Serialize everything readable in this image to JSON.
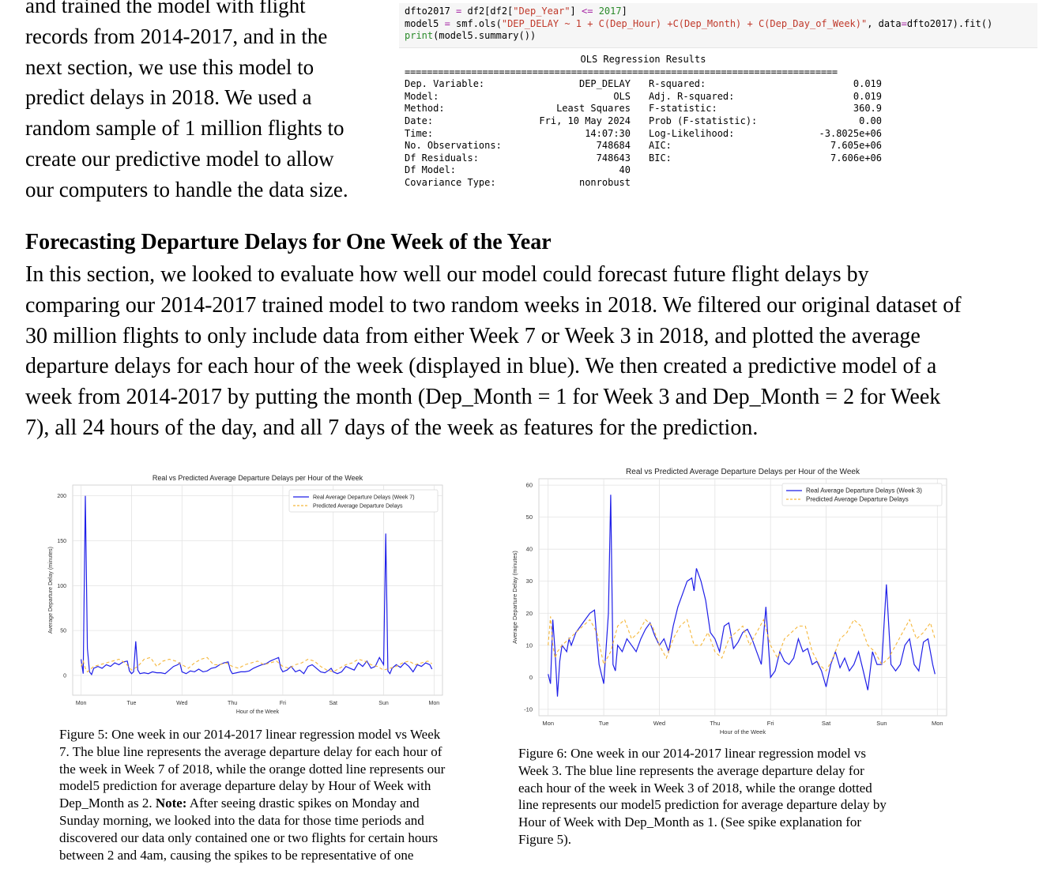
{
  "intro": {
    "lines": [
      "and trained the model with flight",
      "records from 2014-2017, and in the",
      "next section, we use this model to",
      "predict delays in 2018. We used a",
      "random sample of 1 million flights to",
      "create our predictive model to allow",
      "our computers to handle the data size."
    ]
  },
  "code": {
    "line1": "dfto2017 = df2[df2[\"Dep_Year\"] <= 2017]",
    "line2": "model5 = smf.ols(\"DEP_DELAY ~ 1 + C(Dep_Hour) +C(Dep_Month) + C(Dep_Day_of_Week)\", data=dfto2017).fit()",
    "line3": "print(model5.summary())"
  },
  "ols": {
    "title": "OLS Regression Results",
    "rule": "==============================================================================",
    "rows": [
      {
        "l1": "Dep. Variable:",
        "v1": "DEP_DELAY",
        "l2": "R-squared:",
        "v2": "0.019"
      },
      {
        "l1": "Model:",
        "v1": "OLS",
        "l2": "Adj. R-squared:",
        "v2": "0.019"
      },
      {
        "l1": "Method:",
        "v1": "Least Squares",
        "l2": "F-statistic:",
        "v2": "360.9"
      },
      {
        "l1": "Date:",
        "v1": "Fri, 10 May 2024",
        "l2": "Prob (F-statistic):",
        "v2": "0.00"
      },
      {
        "l1": "Time:",
        "v1": "14:07:30",
        "l2": "Log-Likelihood:",
        "v2": "-3.8025e+06"
      },
      {
        "l1": "No. Observations:",
        "v1": "748684",
        "l2": "AIC:",
        "v2": "7.605e+06"
      },
      {
        "l1": "Df Residuals:",
        "v1": "748643",
        "l2": "BIC:",
        "v2": "7.606e+06"
      },
      {
        "l1": "Df Model:",
        "v1": "40",
        "l2": "",
        "v2": ""
      },
      {
        "l1": "Covariance Type:",
        "v1": "nonrobust",
        "l2": "",
        "v2": ""
      }
    ]
  },
  "section": {
    "heading": "Forecasting Departure Delays for One Week of the Year",
    "lines": [
      "In this section, we looked to evaluate how well our model could forecast future flight delays by",
      "comparing our 2014-2017 trained model to two random weeks in 2018. We filtered our original dataset of",
      "30 million flights to only include data from either Week 7 or Week 3 in 2018, and plotted the average",
      "departure delays for each hour of the week (displayed in blue). We then created a predictive model of a",
      "week from 2014-2017 by putting the month (Dep_Month = 1 for Week 3 and Dep_Month = 2 for Week",
      "7), all 24 hours of the day, and all 7 days of the week as features for the prediction."
    ]
  },
  "colors": {
    "real": "#1f1fe8",
    "pred": "#f5b73b",
    "grid": "#e3e3e3",
    "axis": "#cccccc"
  },
  "chart_data": [
    {
      "type": "line",
      "title": "Real vs Predicted Average Departure Delays per Hour of the Week",
      "xlabel": "Hour of the Week",
      "ylabel": "Average Departure Delay (minutes)",
      "xlim": [
        -4,
        172
      ],
      "ylim": [
        -22,
        212
      ],
      "xticks": [
        0,
        24,
        48,
        72,
        96,
        120,
        144,
        168
      ],
      "xtick_labels": [
        "Mon",
        "Tue",
        "Wed",
        "Thu",
        "Fri",
        "Sat",
        "Sun",
        "Mon"
      ],
      "yticks": [
        0,
        50,
        100,
        150,
        200
      ],
      "grid": true,
      "legend": "top-right",
      "series": [
        {
          "name": "Real Average Departure Delays (Week 7)",
          "style": "solid",
          "x": [
            0,
            1,
            2,
            3,
            4,
            5,
            6,
            8,
            10,
            12,
            14,
            16,
            18,
            20,
            22,
            23,
            24,
            25,
            26,
            27,
            28,
            30,
            32,
            34,
            36,
            38,
            40,
            42,
            44,
            46,
            47,
            48,
            50,
            52,
            54,
            56,
            58,
            60,
            62,
            64,
            66,
            68,
            70,
            71,
            72,
            74,
            76,
            78,
            80,
            82,
            84,
            86,
            88,
            90,
            92,
            94,
            95,
            96,
            98,
            100,
            102,
            104,
            106,
            108,
            110,
            112,
            114,
            116,
            118,
            119,
            120,
            122,
            124,
            126,
            128,
            130,
            132,
            134,
            136,
            138,
            140,
            142,
            144,
            145,
            146,
            147,
            148,
            150,
            152,
            154,
            156,
            158,
            160,
            162,
            164,
            166,
            167
          ],
          "y": [
            18,
            2,
            200,
            30,
            4,
            1,
            8,
            10,
            8,
            12,
            10,
            14,
            12,
            15,
            16,
            5,
            2,
            4,
            38,
            6,
            2,
            3,
            2,
            4,
            3,
            3,
            2,
            6,
            10,
            12,
            14,
            4,
            2,
            5,
            4,
            7,
            4,
            5,
            8,
            9,
            12,
            14,
            15,
            6,
            2,
            3,
            4,
            4,
            5,
            8,
            10,
            12,
            13,
            16,
            18,
            20,
            8,
            4,
            6,
            10,
            4,
            6,
            2,
            10,
            12,
            8,
            4,
            3,
            6,
            8,
            4,
            2,
            4,
            10,
            8,
            6,
            14,
            10,
            16,
            8,
            10,
            20,
            12,
            158,
            5,
            2,
            8,
            12,
            9,
            14,
            10,
            4,
            12,
            10,
            14,
            12,
            7
          ]
        },
        {
          "name": "Predicted Average Departure Delays",
          "style": "dashed",
          "x": [
            0,
            1,
            2,
            3,
            4,
            6,
            9,
            12,
            15,
            18,
            21,
            24,
            27,
            30,
            33,
            36,
            39,
            42,
            45,
            48,
            51,
            54,
            57,
            60,
            63,
            66,
            69,
            72,
            75,
            78,
            81,
            84,
            87,
            90,
            93,
            96,
            99,
            102,
            105,
            108,
            111,
            114,
            117,
            120,
            123,
            126,
            129,
            132,
            135,
            138,
            141,
            144,
            147,
            150,
            153,
            156,
            159,
            162,
            165,
            167
          ],
          "y": [
            10,
            16,
            8,
            4,
            6,
            10,
            12,
            14,
            16,
            18,
            14,
            6,
            10,
            18,
            20,
            10,
            16,
            18,
            16,
            12,
            8,
            14,
            18,
            20,
            12,
            12,
            14,
            10,
            8,
            12,
            14,
            16,
            12,
            14,
            16,
            10,
            8,
            12,
            14,
            18,
            16,
            10,
            6,
            4,
            8,
            12,
            14,
            18,
            16,
            12,
            10,
            6,
            8,
            10,
            14,
            16,
            12,
            14,
            16,
            13
          ]
        }
      ]
    },
    {
      "type": "line",
      "title": "Real vs Predicted Average Departure Delays per Hour of the Week",
      "xlabel": "Hour of the Week",
      "ylabel": "Average Departure Delay (minutes)",
      "xlim": [
        -4,
        172
      ],
      "ylim": [
        -12,
        62
      ],
      "xticks": [
        0,
        24,
        48,
        72,
        96,
        120,
        144,
        168
      ],
      "xtick_labels": [
        "Mon",
        "Tue",
        "Wed",
        "Thu",
        "Fri",
        "Sat",
        "Sun",
        "Mon"
      ],
      "yticks": [
        -10,
        0,
        10,
        20,
        30,
        40,
        50,
        60
      ],
      "grid": true,
      "legend": "top-right",
      "series": [
        {
          "name": "Real Average Departure Delays (Week 3)",
          "style": "solid",
          "x": [
            0,
            1,
            2,
            3,
            4,
            5,
            6,
            8,
            9,
            10,
            12,
            14,
            16,
            18,
            20,
            21,
            22,
            24,
            26,
            27,
            28,
            29,
            30,
            32,
            34,
            36,
            38,
            40,
            42,
            44,
            46,
            48,
            50,
            52,
            54,
            56,
            58,
            60,
            62,
            63,
            64,
            66,
            68,
            70,
            72,
            74,
            76,
            78,
            80,
            82,
            84,
            86,
            88,
            90,
            92,
            94,
            96,
            98,
            100,
            102,
            104,
            106,
            108,
            110,
            112,
            114,
            116,
            118,
            120,
            122,
            124,
            126,
            128,
            130,
            132,
            134,
            136,
            138,
            140,
            142,
            144,
            146,
            148,
            150,
            152,
            154,
            156,
            158,
            160,
            162,
            164,
            166,
            167
          ],
          "y": [
            1,
            -2,
            18,
            8,
            -6,
            5,
            10,
            8,
            12,
            10,
            14,
            16,
            18,
            20,
            21,
            12,
            4,
            -2,
            20,
            57,
            4,
            2,
            10,
            8,
            12,
            10,
            8,
            12,
            15,
            17,
            13,
            10,
            12,
            8,
            16,
            22,
            26,
            30,
            31,
            27,
            34,
            30,
            24,
            14,
            12,
            8,
            16,
            17,
            9,
            11,
            14,
            15,
            12,
            8,
            4,
            22,
            0,
            2,
            8,
            5,
            4,
            6,
            12,
            8,
            9,
            4,
            5,
            2,
            -3,
            4,
            8,
            3,
            6,
            2,
            4,
            8,
            2,
            -4,
            8,
            4,
            4,
            29,
            4,
            2,
            4,
            10,
            12,
            4,
            2,
            11,
            12,
            4,
            1
          ]
        },
        {
          "name": "Predicted Average Departure Delays",
          "style": "dashed",
          "x": [
            0,
            1,
            2,
            3,
            4,
            6,
            9,
            12,
            15,
            18,
            21,
            24,
            27,
            30,
            33,
            36,
            39,
            42,
            45,
            48,
            51,
            54,
            57,
            60,
            63,
            66,
            69,
            72,
            75,
            78,
            81,
            84,
            87,
            90,
            93,
            96,
            99,
            102,
            105,
            108,
            111,
            114,
            117,
            120,
            123,
            126,
            129,
            132,
            135,
            138,
            141,
            144,
            147,
            150,
            153,
            156,
            159,
            162,
            165,
            167
          ],
          "y": [
            10,
            19,
            10,
            6,
            8,
            10,
            12,
            14,
            16,
            18,
            14,
            4,
            8,
            16,
            18,
            12,
            14,
            18,
            16,
            10,
            6,
            12,
            16,
            18,
            10,
            10,
            14,
            8,
            6,
            12,
            14,
            16,
            10,
            14,
            18,
            10,
            6,
            12,
            14,
            16,
            16,
            8,
            4,
            2,
            6,
            12,
            14,
            18,
            16,
            10,
            8,
            4,
            6,
            10,
            14,
            18,
            12,
            14,
            17,
            12
          ]
        }
      ]
    }
  ],
  "captions": {
    "fig5": [
      "Figure 5: One week in our 2014-2017 linear regression model vs Week",
      "7. The blue line represents the average departure delay for each hour of",
      "the week in Week 7 of 2018, while the orange dotted line represents our",
      "model5 prediction for average departure delay by Hour of Week with",
      "Dep_Month as 2. Note: After seeing drastic spikes on Monday and",
      "Sunday morning, we looked into the data for those time periods and",
      "discovered our data only contained one or two flights for certain hours",
      "between 2 and 4am, causing the spikes to be representative of one"
    ],
    "fig6": [
      "Figure 6: One week in our 2014-2017 linear regression model vs",
      "Week 3. The blue line represents the average departure delay for",
      "each hour of the week in Week 3 of 2018, while the orange dotted",
      "line represents our model5 prediction for average departure delay by",
      "Hour of Week with Dep_Month as 1. (See spike explanation for",
      "Figure 5)."
    ]
  }
}
